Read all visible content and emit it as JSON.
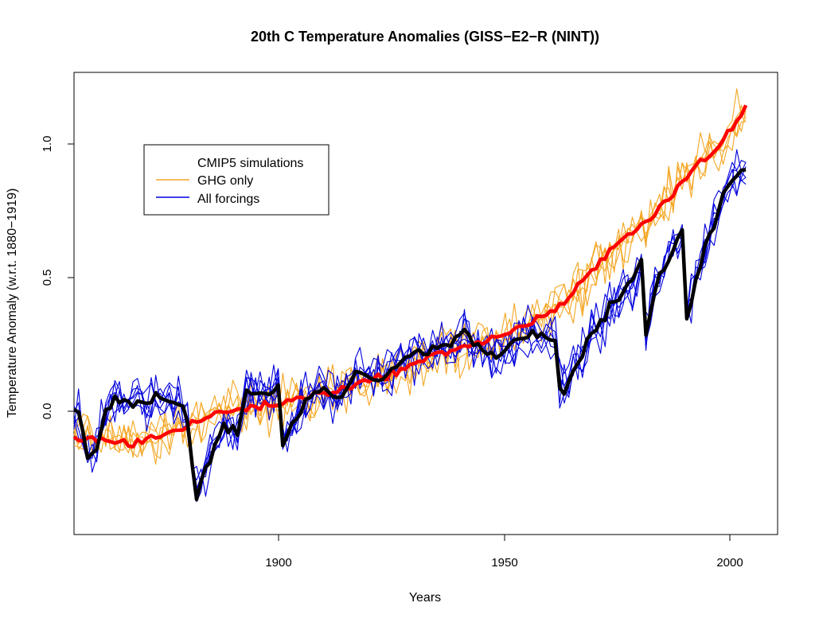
{
  "chart_data": {
    "type": "line",
    "title": "20th C Temperature Anomalies (GISS−E2−R (NINT))",
    "xlabel": "Years",
    "ylabel": "Temperature Anomaly (w.r.t. 1880−1919)",
    "xlim": [
      1857,
      2012
    ],
    "ylim": [
      -0.46,
      1.26
    ],
    "x_ticks": [
      1900,
      1950,
      2000
    ],
    "x_tick_labels": [
      "1900",
      "1950",
      "2000"
    ],
    "y_ticks": [
      0.0,
      0.5,
      1.0
    ],
    "y_tick_labels": [
      "0.0",
      "0.5",
      "1.0"
    ],
    "grid": false,
    "legend": {
      "placement": "upper-left",
      "header": "CMIP5 simulations",
      "entries": [
        {
          "label": "GHG only",
          "color": "#f5a623"
        },
        {
          "label": "All forcings",
          "color": "#0000dd"
        }
      ]
    },
    "colors": {
      "ghg_ensemble": "#f5a623",
      "all_ensemble": "#0000dd",
      "ghg_mean": "#ff0000",
      "all_mean": "#000000"
    },
    "ghg_mean_keypoints": {
      "x": [
        1857,
        1870,
        1880,
        1890,
        1900,
        1910,
        1920,
        1930,
        1940,
        1950,
        1960,
        1965,
        1970,
        1975,
        1980,
        1985,
        1990,
        1995,
        2000,
        2005
      ],
      "y": [
        -0.1,
        -0.12,
        -0.07,
        0.0,
        0.02,
        0.06,
        0.1,
        0.16,
        0.23,
        0.27,
        0.35,
        0.4,
        0.5,
        0.59,
        0.67,
        0.74,
        0.83,
        0.93,
        1.0,
        1.13
      ]
    },
    "all_mean_keypoints": {
      "x": [
        1857,
        1858,
        1860,
        1862,
        1864,
        1867,
        1870,
        1875,
        1880,
        1882,
        1883,
        1884,
        1886,
        1890,
        1893,
        1895,
        1900,
        1902,
        1903,
        1905,
        1910,
        1915,
        1920,
        1925,
        1930,
        1935,
        1940,
        1943,
        1945,
        1950,
        1955,
        1960,
        1963,
        1964,
        1965,
        1968,
        1970,
        1975,
        1980,
        1982,
        1983,
        1985,
        1988,
        1990,
        1991,
        1992,
        1994,
        1996,
        2000,
        2003,
        2005
      ],
      "y": [
        0.0,
        0.0,
        -0.18,
        -0.14,
        0.0,
        0.05,
        0.02,
        0.05,
        0.03,
        -0.03,
        -0.2,
        -0.32,
        -0.22,
        -0.05,
        -0.08,
        0.08,
        0.06,
        0.09,
        -0.12,
        -0.05,
        0.09,
        0.05,
        0.15,
        0.12,
        0.2,
        0.22,
        0.25,
        0.3,
        0.25,
        0.2,
        0.27,
        0.3,
        0.26,
        0.1,
        0.07,
        0.18,
        0.25,
        0.38,
        0.48,
        0.55,
        0.28,
        0.45,
        0.58,
        0.62,
        0.66,
        0.35,
        0.48,
        0.6,
        0.8,
        0.88,
        0.9
      ]
    }
  }
}
